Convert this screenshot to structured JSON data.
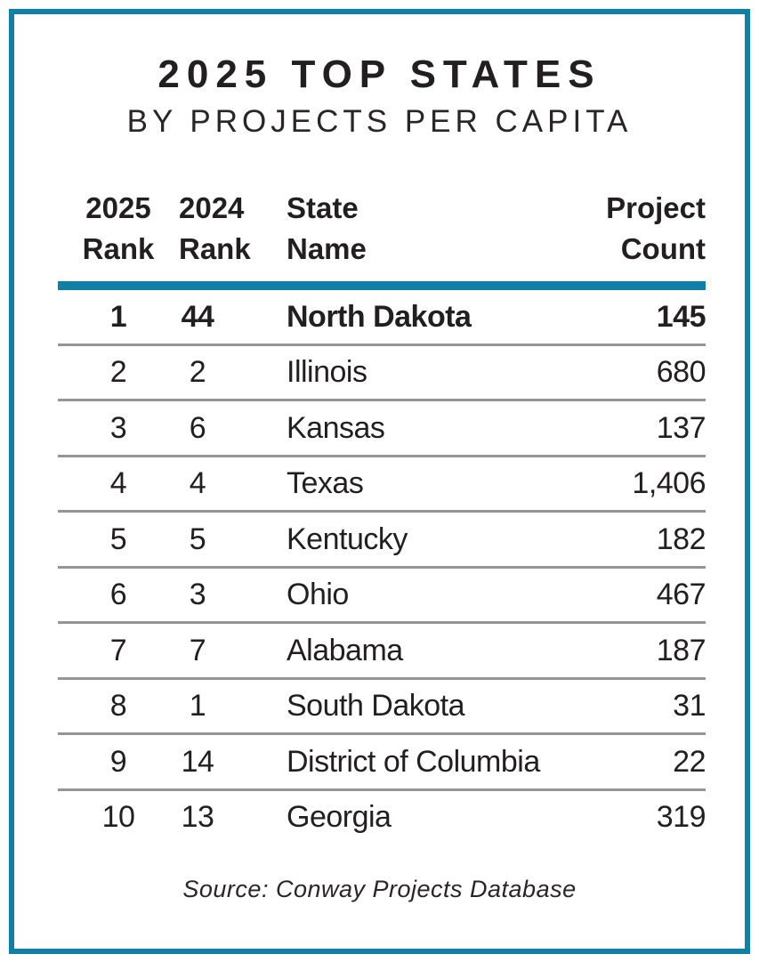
{
  "title": "2025 TOP STATES",
  "subtitle": "BY PROJECTS PER CAPITA",
  "colors": {
    "accent_teal": "#0f7fa3",
    "divider_gray": "#939598",
    "text": "#231f20"
  },
  "table": {
    "headers": {
      "rank_2025": [
        "2025",
        "Rank"
      ],
      "rank_2024": [
        "2024",
        "Rank"
      ],
      "state": [
        "State",
        "Name"
      ],
      "count": [
        "Project",
        "Count"
      ]
    },
    "rows": [
      {
        "rank_2025": "1",
        "rank_2024": "44",
        "state": "North Dakota",
        "count": "145"
      },
      {
        "rank_2025": "2",
        "rank_2024": "2",
        "state": "Illinois",
        "count": "680"
      },
      {
        "rank_2025": "3",
        "rank_2024": "6",
        "state": "Kansas",
        "count": "137"
      },
      {
        "rank_2025": "4",
        "rank_2024": "4",
        "state": "Texas",
        "count": "1,406"
      },
      {
        "rank_2025": "5",
        "rank_2024": "5",
        "state": "Kentucky",
        "count": "182"
      },
      {
        "rank_2025": "6",
        "rank_2024": "3",
        "state": "Ohio",
        "count": "467"
      },
      {
        "rank_2025": "7",
        "rank_2024": "7",
        "state": "Alabama",
        "count": "187"
      },
      {
        "rank_2025": "8",
        "rank_2024": "1",
        "state": "South Dakota",
        "count": "31"
      },
      {
        "rank_2025": "9",
        "rank_2024": "14",
        "state": "District of Columbia",
        "count": "22"
      },
      {
        "rank_2025": "10",
        "rank_2024": "13",
        "state": "Georgia",
        "count": "319"
      }
    ]
  },
  "source": "Source: Conway Projects Database",
  "chart_data": {
    "type": "table",
    "title": "2025 TOP STATES",
    "subtitle": "BY PROJECTS PER CAPITA",
    "columns": [
      "2025 Rank",
      "2024 Rank",
      "State Name",
      "Project Count"
    ],
    "rows": [
      [
        1,
        44,
        "North Dakota",
        145
      ],
      [
        2,
        2,
        "Illinois",
        680
      ],
      [
        3,
        6,
        "Kansas",
        137
      ],
      [
        4,
        4,
        "Texas",
        1406
      ],
      [
        5,
        5,
        "Kentucky",
        182
      ],
      [
        6,
        3,
        "Ohio",
        467
      ],
      [
        7,
        7,
        "Alabama",
        187
      ],
      [
        8,
        1,
        "South Dakota",
        31
      ],
      [
        9,
        14,
        "District of Columbia",
        22
      ],
      [
        10,
        13,
        "Georgia",
        319
      ]
    ],
    "highlighted_row": "North Dakota",
    "source": "Source: Conway Projects Database"
  }
}
